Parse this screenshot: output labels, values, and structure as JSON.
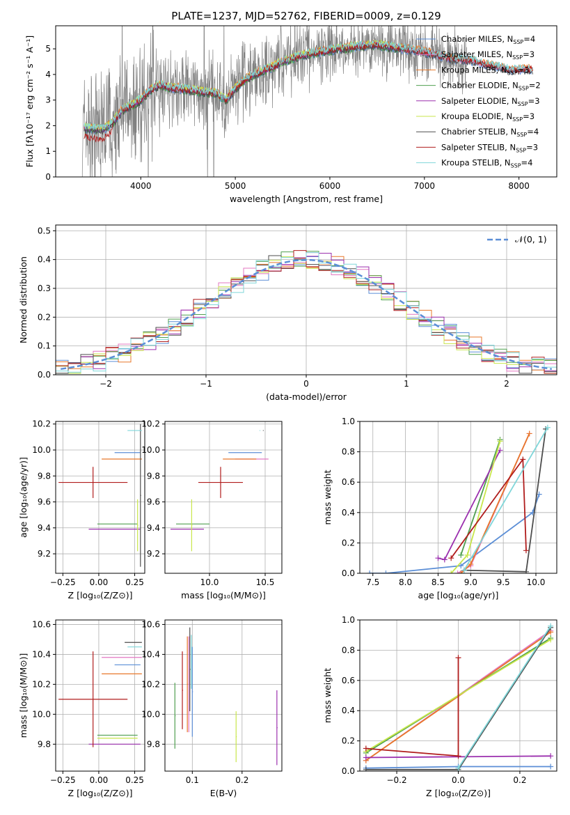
{
  "figure_title": "PLATE=1237, MJD=52762, FIBERID=0009, z=0.129",
  "colors": {
    "chabrier_miles": "#5b8ed6",
    "salpeter_miles": "#e377c2",
    "kroupa_miles": "#e8782a",
    "chabrier_elodie": "#4f9f4f",
    "salpeter_elodie": "#9b2fae",
    "kroupa_elodie": "#c8e64b",
    "chabrier_stelib": "#4d4d4d",
    "salpeter_stelib": "#b01c1c",
    "kroupa_stelib": "#7fd6d9",
    "observed": "#808080",
    "gaussian": "#5b8ed6"
  },
  "chart_data": [
    {
      "id": "spectrum",
      "type": "line",
      "xlabel": "wavelength [Angstrom, rest frame]",
      "ylabel": "Flux [fλ10⁻¹⁷ erg cm⁻² s⁻¹ A⁻¹]",
      "xlim": [
        3100,
        8400
      ],
      "ylim": [
        0,
        5.9
      ],
      "xticks": [
        "4000",
        "5000",
        "6000",
        "7000",
        "8000"
      ],
      "yticks": [
        "0",
        "1",
        "2",
        "3",
        "4",
        "5"
      ],
      "legend_position": "top-right",
      "legend": [
        {
          "label": "Chabrier MILES, N",
          "sub": "SSP",
          "tail": "=4",
          "color": "chabrier_miles"
        },
        {
          "label": "Salpeter MILES, N",
          "sub": "SSP",
          "tail": "=3",
          "color": "salpeter_miles"
        },
        {
          "label": "Kroupa MILES, N",
          "sub": "SSP",
          "tail": "=3",
          "color": "kroupa_miles"
        },
        {
          "label": "Chabrier ELODIE, N",
          "sub": "SSP",
          "tail": "=2",
          "color": "chabrier_elodie"
        },
        {
          "label": "Salpeter ELODIE, N",
          "sub": "SSP",
          "tail": "=3",
          "color": "salpeter_elodie"
        },
        {
          "label": "Kroupa ELODIE, N",
          "sub": "SSP",
          "tail": "=3",
          "color": "kroupa_elodie"
        },
        {
          "label": "Chabrier STELIB, N",
          "sub": "SSP",
          "tail": "=4",
          "color": "chabrier_stelib"
        },
        {
          "label": "Salpeter STELIB, N",
          "sub": "SSP",
          "tail": "=3",
          "color": "salpeter_stelib"
        },
        {
          "label": "Kroupa STELIB, N",
          "sub": "SSP",
          "tail": "=4",
          "color": "kroupa_stelib"
        }
      ],
      "continuum": {
        "x": [
          3400,
          3600,
          3700,
          3800,
          3900,
          4000,
          4100,
          4200,
          4300,
          4500,
          4700,
          4800,
          4900,
          5000,
          5100,
          5200,
          5300,
          5400,
          5500,
          5700,
          5900,
          6100,
          6300,
          6500,
          6700,
          6900,
          7100,
          7300,
          7500,
          7700,
          7900,
          8100
        ],
        "y": [
          1.9,
          1.85,
          2.1,
          2.6,
          2.8,
          3.0,
          3.4,
          3.6,
          3.5,
          3.4,
          3.3,
          3.25,
          3.0,
          3.45,
          3.8,
          4.0,
          4.15,
          4.3,
          4.5,
          4.75,
          4.9,
          5.0,
          5.1,
          5.15,
          5.05,
          4.95,
          4.8,
          4.6,
          4.55,
          4.35,
          4.2,
          4.2
        ]
      }
    },
    {
      "id": "residuals",
      "type": "bar",
      "xlabel": "(data-model)/error",
      "ylabel": "Normed distribution",
      "xlim": [
        -2.5,
        2.5
      ],
      "ylim": [
        0,
        0.52
      ],
      "xticks": [
        "−2",
        "−1",
        "0",
        "1",
        "2"
      ],
      "yticks": [
        "0.0",
        "0.1",
        "0.2",
        "0.3",
        "0.4",
        "0.5"
      ],
      "bin_width": 0.125,
      "legend_position": "top-right",
      "legend_label": "𝒩(0, 1)"
    },
    {
      "id": "age_vs_Z",
      "type": "scatter",
      "xlabel": "Z [log₁₀(Z/Z⊙)]",
      "ylabel": "age  [log₁₀(age/yr)]",
      "xlim": [
        -0.3,
        0.32
      ],
      "ylim": [
        9.05,
        10.22
      ],
      "xticks": [
        "−0.25",
        "0.00",
        "0.25"
      ],
      "yticks": [
        "9.2",
        "9.4",
        "9.6",
        "9.8",
        "10.0",
        "10.2"
      ],
      "points": [
        {
          "m": "chabrier_miles",
          "x": 0.2,
          "xe": 0.09,
          "y": 9.98,
          "ye": 0.0
        },
        {
          "m": "salpeter_miles",
          "x": 0.28,
          "xe": 0.0,
          "y": 10.15,
          "ye": 0.0
        },
        {
          "m": "kroupa_miles",
          "x": 0.16,
          "xe": 0.14,
          "y": 9.93,
          "ye": 0.0
        },
        {
          "m": "chabrier_elodie",
          "x": 0.13,
          "xe": 0.14,
          "y": 9.43,
          "ye": 0.0
        },
        {
          "m": "salpeter_elodie",
          "x": 0.11,
          "xe": 0.18,
          "y": 9.39,
          "ye": 0.0
        },
        {
          "m": "kroupa_elodie",
          "x": 0.27,
          "xe": 0.0,
          "y": 9.42,
          "ye": 0.2
        },
        {
          "m": "chabrier_stelib",
          "x": 0.29,
          "xe": 0.0,
          "y": 9.65,
          "ye": 0.55
        },
        {
          "m": "salpeter_stelib",
          "x": -0.04,
          "xe": 0.24,
          "y": 9.75,
          "ye": 0.12
        },
        {
          "m": "kroupa_stelib",
          "x": 0.25,
          "xe": 0.05,
          "y": 10.15,
          "ye": 0.0
        }
      ]
    },
    {
      "id": "age_vs_mass",
      "type": "scatter",
      "xlabel": "mass [log₁₀(M/M⊙)]",
      "ylabel": "",
      "xlim": [
        9.6,
        10.65
      ],
      "ylim": [
        9.05,
        10.22
      ],
      "xticks": [
        "10.0",
        "10.5"
      ],
      "yticks": [
        "9.2",
        "9.4",
        "9.6",
        "9.8",
        "10.0",
        "10.2"
      ],
      "points": [
        {
          "m": "chabrier_miles",
          "x": 10.32,
          "xe": 0.15,
          "y": 9.98,
          "ye": 0.0
        },
        {
          "m": "salpeter_miles",
          "x": 10.38,
          "xe": 0.15,
          "y": 9.93,
          "ye": 0.0
        },
        {
          "m": "kroupa_miles",
          "x": 10.27,
          "xe": 0.15,
          "y": 9.93,
          "ye": 0.0
        },
        {
          "m": "chabrier_elodie",
          "x": 9.85,
          "xe": 0.15,
          "y": 9.43,
          "ye": 0.0
        },
        {
          "m": "salpeter_elodie",
          "x": 9.8,
          "xe": 0.15,
          "y": 9.39,
          "ye": 0.0
        },
        {
          "m": "kroupa_elodie",
          "x": 9.84,
          "xe": 0.0,
          "y": 9.42,
          "ye": 0.2
        },
        {
          "m": "chabrier_stelib",
          "x": 10.48,
          "xe": 0.0,
          "y": 10.15,
          "ye": 0.0
        },
        {
          "m": "salpeter_stelib",
          "x": 10.1,
          "xe": 0.2,
          "y": 9.75,
          "ye": 0.12
        },
        {
          "m": "kroupa_stelib",
          "x": 10.45,
          "xe": 0.0,
          "y": 10.15,
          "ye": 0.0
        }
      ]
    },
    {
      "id": "weight_vs_age",
      "type": "line",
      "xlabel": "age  [log₁₀(age/yr)]",
      "ylabel": "mass weight",
      "xlim": [
        7.3,
        10.32
      ],
      "ylim": [
        0,
        1.0
      ],
      "xticks": [
        "7.5",
        "8.0",
        "8.5",
        "9.0",
        "9.5",
        "10.0"
      ],
      "yticks": [
        "0.0",
        "0.2",
        "0.4",
        "0.6",
        "0.8",
        "1.0"
      ],
      "series": [
        {
          "m": "chabrier_miles",
          "x": [
            7.45,
            7.7,
            8.85,
            9.95,
            10.05
          ],
          "y": [
            0.0,
            0.0,
            0.05,
            0.4,
            0.52
          ]
        },
        {
          "m": "salpeter_miles",
          "x": [
            8.8,
            9.0,
            9.9
          ],
          "y": [
            0.0,
            0.05,
            0.92
          ]
        },
        {
          "m": "kroupa_miles",
          "x": [
            8.85,
            9.0,
            9.9
          ],
          "y": [
            0.0,
            0.06,
            0.92
          ]
        },
        {
          "m": "chabrier_elodie",
          "x": [
            8.85,
            9.45
          ],
          "y": [
            0.12,
            0.88
          ]
        },
        {
          "m": "salpeter_elodie",
          "x": [
            8.5,
            8.6,
            9.45
          ],
          "y": [
            0.1,
            0.09,
            0.81
          ]
        },
        {
          "m": "kroupa_elodie",
          "x": [
            8.7,
            8.95,
            9.45
          ],
          "y": [
            0.0,
            0.12,
            0.87
          ]
        },
        {
          "m": "chabrier_stelib",
          "x": [
            8.9,
            9.85,
            10.15
          ],
          "y": [
            0.02,
            0.01,
            0.95
          ]
        },
        {
          "m": "salpeter_stelib",
          "x": [
            8.7,
            9.8,
            9.85
          ],
          "y": [
            0.1,
            0.75,
            0.15
          ]
        },
        {
          "m": "kroupa_stelib",
          "x": [
            8.9,
            10.18
          ],
          "y": [
            0.02,
            0.96
          ]
        }
      ]
    },
    {
      "id": "mass_vs_Z",
      "type": "scatter",
      "xlabel": "Z [log₁₀(Z/Z⊙)]",
      "ylabel": "mass [log₁₀(M/M⊙)]",
      "xlim": [
        -0.3,
        0.32
      ],
      "ylim": [
        9.62,
        10.63
      ],
      "xticks": [
        "−0.25",
        "0.00",
        "0.25"
      ],
      "yticks": [
        "9.8",
        "10.0",
        "10.2",
        "10.4",
        "10.6"
      ],
      "points": [
        {
          "m": "chabrier_miles",
          "x": 0.2,
          "xe": 0.09,
          "y": 10.33,
          "ye": 0.0
        },
        {
          "m": "salpeter_miles",
          "x": 0.16,
          "xe": 0.14,
          "y": 10.38,
          "ye": 0.0
        },
        {
          "m": "kroupa_miles",
          "x": 0.16,
          "xe": 0.14,
          "y": 10.27,
          "ye": 0.0
        },
        {
          "m": "chabrier_elodie",
          "x": 0.13,
          "xe": 0.14,
          "y": 9.86,
          "ye": 0.0
        },
        {
          "m": "salpeter_elodie",
          "x": 0.11,
          "xe": 0.18,
          "y": 9.8,
          "ye": 0.0
        },
        {
          "m": "kroupa_elodie",
          "x": 0.13,
          "xe": 0.14,
          "y": 9.84,
          "ye": 0.0
        },
        {
          "m": "chabrier_stelib",
          "x": 0.24,
          "xe": 0.06,
          "y": 10.48,
          "ye": 0.0
        },
        {
          "m": "salpeter_stelib",
          "x": -0.04,
          "xe": 0.24,
          "y": 10.1,
          "ye": 0.32
        },
        {
          "m": "kroupa_stelib",
          "x": 0.25,
          "xe": 0.05,
          "y": 10.45,
          "ye": 0.0
        }
      ]
    },
    {
      "id": "mass_vs_EBV",
      "type": "scatter",
      "xlabel": "E(B-V)",
      "ylabel": "",
      "xlim": [
        0.045,
        0.28
      ],
      "ylim": [
        9.62,
        10.63
      ],
      "xticks": [
        "0.1",
        "0.2"
      ],
      "yticks": [
        "9.8",
        "10.0",
        "10.2",
        "10.4",
        "10.6"
      ],
      "points": [
        {
          "m": "chabrier_miles",
          "x": 0.1,
          "xe": 0.0,
          "y": 10.15,
          "ye": 0.3
        },
        {
          "m": "salpeter_miles",
          "x": 0.093,
          "xe": 0.0,
          "y": 10.2,
          "ye": 0.32
        },
        {
          "m": "kroupa_miles",
          "x": 0.09,
          "xe": 0.0,
          "y": 10.2,
          "ye": 0.32
        },
        {
          "m": "chabrier_elodie",
          "x": 0.065,
          "xe": 0.0,
          "y": 9.99,
          "ye": 0.22
        },
        {
          "m": "salpeter_elodie",
          "x": 0.27,
          "xe": 0.0,
          "y": 9.91,
          "ye": 0.25
        },
        {
          "m": "kroupa_elodie",
          "x": 0.188,
          "xe": 0.0,
          "y": 9.85,
          "ye": 0.17
        },
        {
          "m": "chabrier_stelib",
          "x": 0.095,
          "xe": 0.0,
          "y": 10.3,
          "ye": 0.28
        },
        {
          "m": "salpeter_stelib",
          "x": 0.08,
          "xe": 0.0,
          "y": 10.16,
          "ye": 0.26
        },
        {
          "m": "kroupa_stelib",
          "x": 0.098,
          "xe": 0.0,
          "y": 10.35,
          "ye": 0.18
        }
      ]
    },
    {
      "id": "weight_vs_Z",
      "type": "line",
      "xlabel": "Z [log₁₀(Z/Z⊙)]",
      "ylabel": "mass weight",
      "xlim": [
        -0.32,
        0.32
      ],
      "ylim": [
        0,
        1.0
      ],
      "xticks": [
        "−0.2",
        "0.0",
        "0.2"
      ],
      "yticks": [
        "0.0",
        "0.2",
        "0.4",
        "0.6",
        "0.8",
        "1.0"
      ],
      "series": [
        {
          "m": "chabrier_miles",
          "x": [
            -0.3,
            0.0,
            0.3
          ],
          "y": [
            0.02,
            0.03,
            0.03
          ]
        },
        {
          "m": "salpeter_miles",
          "x": [
            -0.3,
            0.3
          ],
          "y": [
            0.07,
            0.93
          ]
        },
        {
          "m": "kroupa_miles",
          "x": [
            -0.3,
            0.3
          ],
          "y": [
            0.07,
            0.92
          ]
        },
        {
          "m": "chabrier_elodie",
          "x": [
            -0.3,
            0.3
          ],
          "y": [
            0.12,
            0.88
          ]
        },
        {
          "m": "salpeter_elodie",
          "x": [
            -0.3,
            0.3
          ],
          "y": [
            0.09,
            0.1
          ]
        },
        {
          "m": "kroupa_elodie",
          "x": [
            -0.3,
            0.3
          ],
          "y": [
            0.13,
            0.87
          ]
        },
        {
          "m": "chabrier_stelib",
          "x": [
            -0.3,
            0.0,
            0.3
          ],
          "y": [
            0.01,
            0.01,
            0.95
          ]
        },
        {
          "m": "salpeter_stelib",
          "x": [
            -0.3,
            0.0,
            0.0
          ],
          "y": [
            0.15,
            0.1,
            0.75
          ]
        },
        {
          "m": "kroupa_stelib",
          "x": [
            0.0,
            0.3
          ],
          "y": [
            0.02,
            0.96
          ]
        }
      ]
    }
  ]
}
